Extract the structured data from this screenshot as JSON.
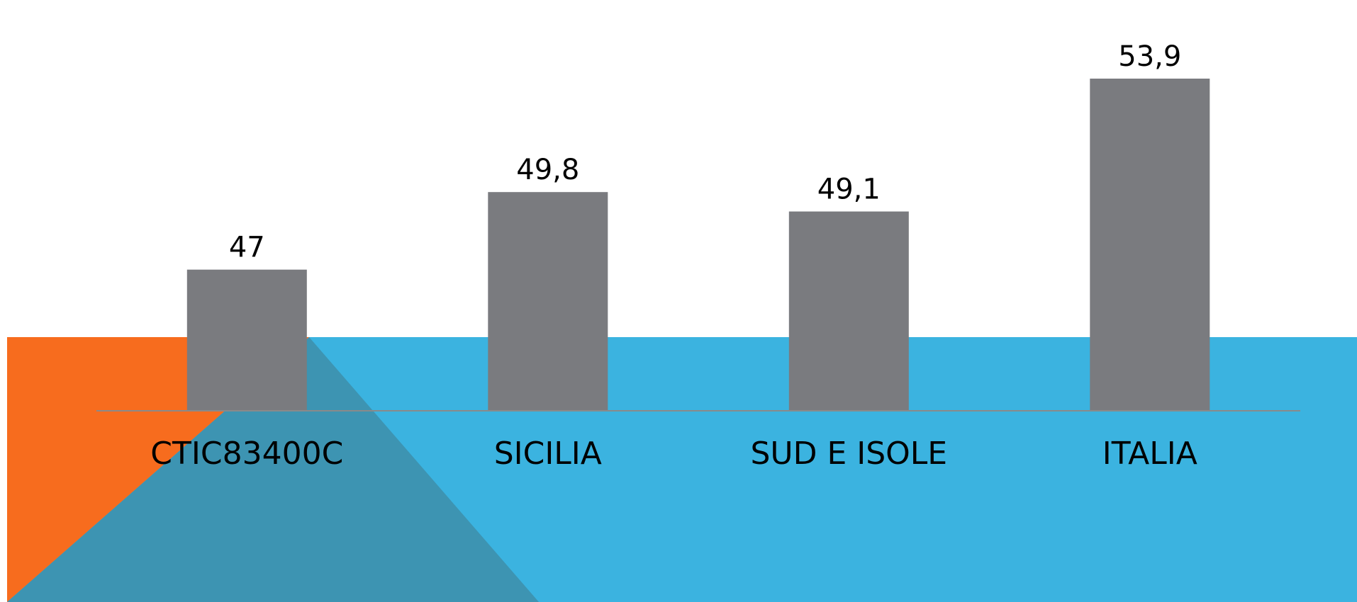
{
  "colors": {
    "background": "#ffffff",
    "panel_blue": "#3bb3e0",
    "accent_orange": "#f76c1e",
    "overlay_teal": "#3d94b2",
    "bar": "#7a7b7f",
    "baseline": "#8a8a8a"
  },
  "chart_data": {
    "type": "bar",
    "title": "",
    "xlabel": "",
    "ylabel": "",
    "categories": [
      "CTIC83400C",
      "SICILIA",
      "SUD E ISOLE",
      "ITALIA"
    ],
    "values": [
      47,
      49.8,
      49.1,
      53.9
    ],
    "value_labels": [
      "47",
      "49,8",
      "49,1",
      "53,9"
    ],
    "ylim": [
      41.9,
      55
    ],
    "grid": false,
    "legend": "none"
  }
}
